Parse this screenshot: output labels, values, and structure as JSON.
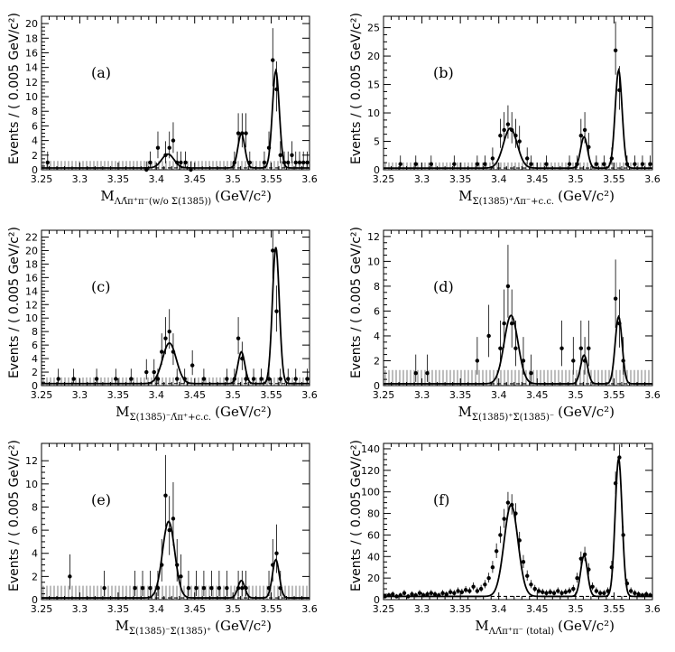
{
  "chart_data": [
    {
      "id": "a",
      "type": "scatter",
      "title": "(a)",
      "xlabel": "M",
      "xlabel_sub": "ΛΛ̄π⁺π⁻(w/o Σ(1385))",
      "xlabel_unit": "(GeV/c²)",
      "ylabel": "Events / ( 0.005 GeV/c²)",
      "xlim": [
        3.25,
        3.6
      ],
      "ylim": [
        0,
        21
      ],
      "xticks": [
        3.25,
        3.3,
        3.35,
        3.4,
        3.45,
        3.5,
        3.55,
        3.6
      ],
      "xtick_labels": [
        "3.25",
        "3.3",
        "3.35",
        "3.4",
        "3.45",
        "3.5",
        "3.55",
        "3.6"
      ],
      "yticks": [
        0,
        2,
        4,
        6,
        8,
        10,
        12,
        14,
        16,
        18,
        20
      ],
      "ytick_labels": [
        "0",
        "2",
        "4",
        "6",
        "8",
        "10",
        "12",
        "14",
        "16",
        "18",
        "20"
      ],
      "background_level": 0.25,
      "band_level": 1.2,
      "peaks": [
        {
          "mu": 3.415,
          "sigma": 0.008,
          "amp": 1.9
        },
        {
          "mu": 3.511,
          "sigma": 0.0045,
          "amp": 4.7
        },
        {
          "mu": 3.556,
          "sigma": 0.0045,
          "amp": 13.3
        }
      ],
      "points": [
        [
          3.258,
          1
        ],
        [
          3.387,
          0
        ],
        [
          3.392,
          1
        ],
        [
          3.402,
          3
        ],
        [
          3.412,
          2
        ],
        [
          3.417,
          3
        ],
        [
          3.422,
          4
        ],
        [
          3.427,
          1
        ],
        [
          3.432,
          1
        ],
        [
          3.438,
          1
        ],
        [
          3.445,
          0
        ],
        [
          3.502,
          1
        ],
        [
          3.507,
          5
        ],
        [
          3.512,
          5
        ],
        [
          3.517,
          5
        ],
        [
          3.522,
          1
        ],
        [
          3.541,
          1
        ],
        [
          3.547,
          3
        ],
        [
          3.552,
          15
        ],
        [
          3.557,
          11
        ],
        [
          3.562,
          2
        ],
        [
          3.567,
          1
        ],
        [
          3.572,
          1
        ],
        [
          3.577,
          2
        ],
        [
          3.582,
          1
        ],
        [
          3.587,
          1
        ],
        [
          3.592,
          1
        ],
        [
          3.597,
          1
        ]
      ]
    },
    {
      "id": "b",
      "type": "scatter",
      "title": "(b)",
      "xlabel": "M",
      "xlabel_sub": "Σ(1385)⁺Λ̄π⁻+c.c.",
      "xlabel_unit": "(GeV/c²)",
      "ylabel": "Events / ( 0.005 GeV/c²)",
      "xlim": [
        3.25,
        3.6
      ],
      "ylim": [
        0,
        27
      ],
      "xticks": [
        3.25,
        3.3,
        3.35,
        3.4,
        3.45,
        3.5,
        3.55,
        3.6
      ],
      "xtick_labels": [
        "3.25",
        "3.3",
        "3.35",
        "3.4",
        "3.45",
        "3.5",
        "3.55",
        "3.6"
      ],
      "yticks": [
        0,
        5,
        10,
        15,
        20,
        25
      ],
      "ytick_labels": [
        "0",
        "5",
        "10",
        "15",
        "20",
        "25"
      ],
      "background_level": 0.3,
      "band_level": 1.3,
      "peaks": [
        {
          "mu": 3.415,
          "sigma": 0.009,
          "amp": 7.0
        },
        {
          "mu": 3.511,
          "sigma": 0.0045,
          "amp": 5.5
        },
        {
          "mu": 3.556,
          "sigma": 0.0045,
          "amp": 17.2
        }
      ],
      "points": [
        [
          3.272,
          1
        ],
        [
          3.292,
          1
        ],
        [
          3.312,
          1
        ],
        [
          3.342,
          1
        ],
        [
          3.372,
          1
        ],
        [
          3.382,
          1
        ],
        [
          3.392,
          2
        ],
        [
          3.402,
          6
        ],
        [
          3.407,
          7
        ],
        [
          3.412,
          8
        ],
        [
          3.417,
          7
        ],
        [
          3.422,
          6
        ],
        [
          3.427,
          5
        ],
        [
          3.437,
          2
        ],
        [
          3.442,
          1
        ],
        [
          3.462,
          1
        ],
        [
          3.492,
          1
        ],
        [
          3.502,
          1
        ],
        [
          3.507,
          6
        ],
        [
          3.512,
          7
        ],
        [
          3.517,
          4
        ],
        [
          3.527,
          1
        ],
        [
          3.537,
          1
        ],
        [
          3.547,
          2
        ],
        [
          3.552,
          21
        ],
        [
          3.557,
          14
        ],
        [
          3.567,
          1
        ],
        [
          3.577,
          1
        ],
        [
          3.587,
          1
        ],
        [
          3.597,
          1
        ]
      ]
    },
    {
      "id": "c",
      "type": "scatter",
      "title": "(c)",
      "xlabel": "M",
      "xlabel_sub": "Σ(1385)⁻Λ̄π⁺+c.c.",
      "xlabel_unit": "(GeV/c²)",
      "ylabel": "Events / ( 0.005 GeV/c²)",
      "xlim": [
        3.25,
        3.6
      ],
      "ylim": [
        0,
        23
      ],
      "xticks": [
        3.25,
        3.3,
        3.35,
        3.4,
        3.45,
        3.5,
        3.55,
        3.6
      ],
      "xtick_labels": [
        "3.25",
        "3.3",
        "3.35",
        "3.4",
        "3.45",
        "3.5",
        "3.55",
        "3.6"
      ],
      "yticks": [
        0,
        2,
        4,
        6,
        8,
        10,
        12,
        14,
        16,
        18,
        20,
        22
      ],
      "ytick_labels": [
        "0",
        "2",
        "4",
        "6",
        "8",
        "10",
        "12",
        "14",
        "16",
        "18",
        "20",
        "22"
      ],
      "background_level": 0.3,
      "band_level": 1.2,
      "peaks": [
        {
          "mu": 3.417,
          "sigma": 0.009,
          "amp": 6.0
        },
        {
          "mu": 3.511,
          "sigma": 0.0045,
          "amp": 4.7
        },
        {
          "mu": 3.556,
          "sigma": 0.0045,
          "amp": 20.2
        }
      ],
      "points": [
        [
          3.272,
          1
        ],
        [
          3.292,
          1
        ],
        [
          3.322,
          1
        ],
        [
          3.347,
          1
        ],
        [
          3.367,
          1
        ],
        [
          3.387,
          2
        ],
        [
          3.397,
          2
        ],
        [
          3.402,
          1
        ],
        [
          3.407,
          5
        ],
        [
          3.412,
          7
        ],
        [
          3.417,
          8
        ],
        [
          3.422,
          5
        ],
        [
          3.427,
          1
        ],
        [
          3.437,
          1
        ],
        [
          3.447,
          3
        ],
        [
          3.462,
          1
        ],
        [
          3.492,
          1
        ],
        [
          3.502,
          1
        ],
        [
          3.507,
          7
        ],
        [
          3.512,
          4
        ],
        [
          3.517,
          1
        ],
        [
          3.527,
          1
        ],
        [
          3.537,
          1
        ],
        [
          3.547,
          1
        ],
        [
          3.552,
          20
        ],
        [
          3.557,
          11
        ],
        [
          3.562,
          1
        ],
        [
          3.572,
          1
        ],
        [
          3.582,
          1
        ],
        [
          3.597,
          1
        ]
      ]
    },
    {
      "id": "d",
      "type": "scatter",
      "title": "(d)",
      "xlabel": "M",
      "xlabel_sub": "Σ(1385)⁺Σ̄(1385)⁻",
      "xlabel_unit": "(GeV/c²)",
      "ylabel": "Events / ( 0.005 GeV/c²)",
      "xlim": [
        3.25,
        3.6
      ],
      "ylim": [
        0,
        12.5
      ],
      "xticks": [
        3.25,
        3.3,
        3.35,
        3.4,
        3.45,
        3.5,
        3.55,
        3.6
      ],
      "xtick_labels": [
        "3.25",
        "3.3",
        "3.35",
        "3.4",
        "3.45",
        "3.5",
        "3.55",
        "3.6"
      ],
      "yticks": [
        0,
        2,
        4,
        6,
        8,
        10,
        12
      ],
      "ytick_labels": [
        "0",
        "2",
        "4",
        "6",
        "8",
        "10",
        "12"
      ],
      "background_level": 0.15,
      "band_level": 1.25,
      "peaks": [
        {
          "mu": 3.416,
          "sigma": 0.009,
          "amp": 5.5
        },
        {
          "mu": 3.511,
          "sigma": 0.0045,
          "amp": 2.3
        },
        {
          "mu": 3.556,
          "sigma": 0.0045,
          "amp": 5.4
        }
      ],
      "points": [
        [
          3.292,
          1
        ],
        [
          3.307,
          1
        ],
        [
          3.372,
          2
        ],
        [
          3.387,
          4
        ],
        [
          3.402,
          3
        ],
        [
          3.407,
          5
        ],
        [
          3.412,
          8
        ],
        [
          3.417,
          5
        ],
        [
          3.422,
          3
        ],
        [
          3.432,
          2
        ],
        [
          3.442,
          1
        ],
        [
          3.482,
          3
        ],
        [
          3.497,
          2
        ],
        [
          3.507,
          3
        ],
        [
          3.512,
          2
        ],
        [
          3.517,
          3
        ],
        [
          3.552,
          7
        ],
        [
          3.557,
          5
        ],
        [
          3.562,
          2
        ]
      ]
    },
    {
      "id": "e",
      "type": "scatter",
      "title": "(e)",
      "xlabel": "M",
      "xlabel_sub": "Σ(1385)⁻Σ̄(1385)⁺",
      "xlabel_unit": "(GeV/c²)",
      "ylabel": "Events / ( 0.005 GeV/c²)",
      "xlim": [
        3.25,
        3.6
      ],
      "ylim": [
        0,
        13.5
      ],
      "xticks": [
        3.25,
        3.3,
        3.35,
        3.4,
        3.45,
        3.5,
        3.55,
        3.6
      ],
      "xtick_labels": [
        "3.25",
        "3.3",
        "3.35",
        "3.4",
        "3.45",
        "3.5",
        "3.55",
        "3.6"
      ],
      "yticks": [
        0,
        2,
        4,
        6,
        8,
        10,
        12
      ],
      "ytick_labels": [
        "0",
        "2",
        "4",
        "6",
        "8",
        "10",
        "12"
      ],
      "background_level": 0.15,
      "band_level": 1.2,
      "peaks": [
        {
          "mu": 3.416,
          "sigma": 0.008,
          "amp": 6.6
        },
        {
          "mu": 3.511,
          "sigma": 0.0045,
          "amp": 1.5
        },
        {
          "mu": 3.556,
          "sigma": 0.0045,
          "amp": 3.3
        }
      ],
      "points": [
        [
          3.287,
          2
        ],
        [
          3.332,
          1
        ],
        [
          3.372,
          1
        ],
        [
          3.382,
          1
        ],
        [
          3.392,
          1
        ],
        [
          3.402,
          1
        ],
        [
          3.407,
          3
        ],
        [
          3.412,
          9
        ],
        [
          3.417,
          6
        ],
        [
          3.422,
          7
        ],
        [
          3.427,
          3
        ],
        [
          3.432,
          2
        ],
        [
          3.442,
          1
        ],
        [
          3.452,
          1
        ],
        [
          3.462,
          1
        ],
        [
          3.472,
          1
        ],
        [
          3.482,
          1
        ],
        [
          3.492,
          1
        ],
        [
          3.507,
          1
        ],
        [
          3.512,
          1
        ],
        [
          3.517,
          1
        ],
        [
          3.547,
          1
        ],
        [
          3.552,
          3
        ],
        [
          3.557,
          4
        ],
        [
          3.562,
          1
        ]
      ]
    },
    {
      "id": "f",
      "type": "scatter",
      "title": "(f)",
      "xlabel": "M",
      "xlabel_sub": "ΛΛ̄π⁺π⁻ (total)",
      "xlabel_unit": "(GeV/c²)",
      "ylabel": "Events / ( 0.005 GeV/c²)",
      "xlim": [
        3.25,
        3.6
      ],
      "ylim": [
        0,
        145
      ],
      "xticks": [
        3.25,
        3.3,
        3.35,
        3.4,
        3.45,
        3.5,
        3.55,
        3.6
      ],
      "xtick_labels": [
        "3.25",
        "3.3",
        "3.35",
        "3.4",
        "3.45",
        "3.5",
        "3.55",
        "3.6"
      ],
      "yticks": [
        0,
        20,
        40,
        60,
        80,
        100,
        120,
        140
      ],
      "ytick_labels": [
        "0",
        "20",
        "40",
        "60",
        "80",
        "100",
        "120",
        "140"
      ],
      "background_level": 3,
      "band_level": 0,
      "peaks": [
        {
          "mu": 3.416,
          "sigma": 0.009,
          "amp": 85
        },
        {
          "mu": 3.511,
          "sigma": 0.0045,
          "amp": 38
        },
        {
          "mu": 3.556,
          "sigma": 0.0045,
          "amp": 128
        }
      ],
      "points": [
        [
          3.252,
          3
        ],
        [
          3.257,
          4
        ],
        [
          3.262,
          5
        ],
        [
          3.267,
          3
        ],
        [
          3.272,
          4
        ],
        [
          3.277,
          6
        ],
        [
          3.282,
          3
        ],
        [
          3.287,
          5
        ],
        [
          3.292,
          4
        ],
        [
          3.297,
          6
        ],
        [
          3.302,
          4
        ],
        [
          3.307,
          5
        ],
        [
          3.312,
          6
        ],
        [
          3.317,
          5
        ],
        [
          3.322,
          4
        ],
        [
          3.327,
          6
        ],
        [
          3.332,
          5
        ],
        [
          3.337,
          7
        ],
        [
          3.342,
          6
        ],
        [
          3.347,
          8
        ],
        [
          3.352,
          7
        ],
        [
          3.357,
          9
        ],
        [
          3.362,
          8
        ],
        [
          3.367,
          12
        ],
        [
          3.372,
          8
        ],
        [
          3.377,
          10
        ],
        [
          3.382,
          14
        ],
        [
          3.387,
          20
        ],
        [
          3.392,
          30
        ],
        [
          3.397,
          45
        ],
        [
          3.402,
          60
        ],
        [
          3.407,
          75
        ],
        [
          3.412,
          90
        ],
        [
          3.417,
          88
        ],
        [
          3.422,
          80
        ],
        [
          3.427,
          55
        ],
        [
          3.432,
          35
        ],
        [
          3.437,
          22
        ],
        [
          3.442,
          14
        ],
        [
          3.447,
          10
        ],
        [
          3.452,
          8
        ],
        [
          3.457,
          7
        ],
        [
          3.462,
          6
        ],
        [
          3.467,
          7
        ],
        [
          3.472,
          6
        ],
        [
          3.477,
          8
        ],
        [
          3.482,
          6
        ],
        [
          3.487,
          7
        ],
        [
          3.492,
          8
        ],
        [
          3.497,
          10
        ],
        [
          3.502,
          20
        ],
        [
          3.507,
          38
        ],
        [
          3.512,
          42
        ],
        [
          3.517,
          28
        ],
        [
          3.522,
          12
        ],
        [
          3.527,
          8
        ],
        [
          3.532,
          6
        ],
        [
          3.537,
          6
        ],
        [
          3.542,
          8
        ],
        [
          3.547,
          30
        ],
        [
          3.552,
          108
        ],
        [
          3.557,
          132
        ],
        [
          3.562,
          60
        ],
        [
          3.567,
          15
        ],
        [
          3.572,
          8
        ],
        [
          3.577,
          6
        ],
        [
          3.582,
          5
        ],
        [
          3.587,
          4
        ],
        [
          3.592,
          5
        ],
        [
          3.597,
          4
        ]
      ]
    }
  ]
}
